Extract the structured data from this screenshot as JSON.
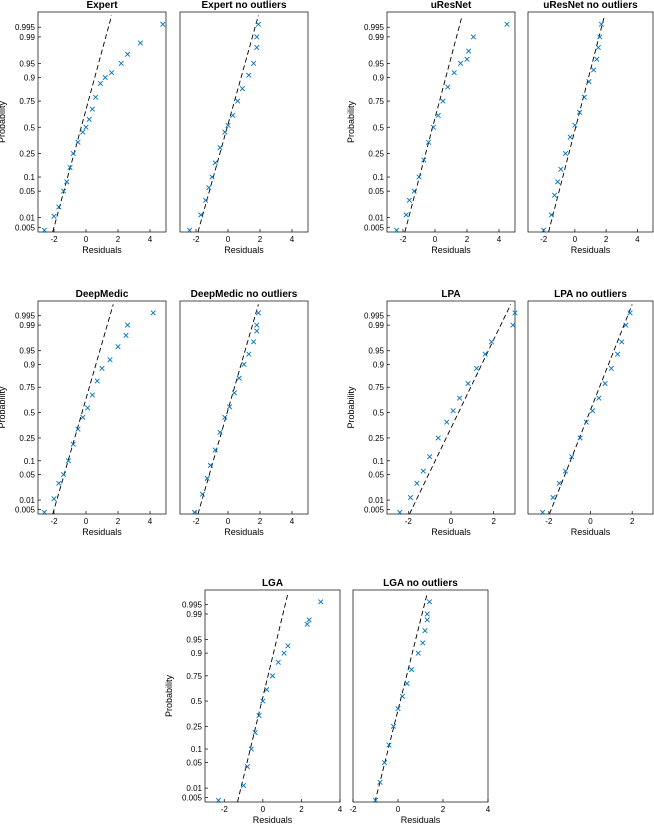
{
  "colors": {
    "marker": "#0072BD",
    "reference_line": "#000000",
    "axes": "#000000"
  },
  "chart_data": [
    {
      "type": "scatter",
      "subtype": "normal-probability-plot",
      "title": "Expert",
      "xlabel": "Residuals",
      "ylabel": "Probability",
      "xlim": [
        -3,
        5
      ],
      "xticks": [
        -2,
        0,
        2,
        4
      ],
      "yticks": [
        "0.005",
        "0.01",
        "0.05",
        "0.1",
        "0.25",
        "0.5",
        "0.75",
        "0.9",
        "0.95",
        "0.99",
        "0.995"
      ],
      "points": [
        [
          -2.6,
          0.004
        ],
        [
          -2.0,
          0.011
        ],
        [
          -1.7,
          0.02
        ],
        [
          -1.4,
          0.05
        ],
        [
          -1.2,
          0.08
        ],
        [
          -1.0,
          0.15
        ],
        [
          -0.8,
          0.25
        ],
        [
          -0.5,
          0.35
        ],
        [
          -0.2,
          0.45
        ],
        [
          0.0,
          0.5
        ],
        [
          0.2,
          0.58
        ],
        [
          0.4,
          0.68
        ],
        [
          0.6,
          0.78
        ],
        [
          0.9,
          0.87
        ],
        [
          1.2,
          0.9
        ],
        [
          1.6,
          0.92
        ],
        [
          2.2,
          0.95
        ],
        [
          2.6,
          0.97
        ],
        [
          3.4,
          0.985
        ],
        [
          4.8,
          0.996
        ]
      ],
      "reference_line": [
        [
          -2.2,
          0.002
        ],
        [
          1.6,
          0.998
        ]
      ]
    },
    {
      "type": "scatter",
      "subtype": "normal-probability-plot",
      "title": "Expert no outliers",
      "xlabel": "Residuals",
      "ylabel": "",
      "xlim": [
        -3,
        5
      ],
      "xticks": [
        -2,
        0,
        2,
        4
      ],
      "yticks": [],
      "points": [
        [
          -2.4,
          0.004
        ],
        [
          -1.7,
          0.012
        ],
        [
          -1.4,
          0.03
        ],
        [
          -1.2,
          0.06
        ],
        [
          -1.0,
          0.1
        ],
        [
          -0.8,
          0.18
        ],
        [
          -0.5,
          0.3
        ],
        [
          -0.2,
          0.45
        ],
        [
          0.0,
          0.52
        ],
        [
          0.3,
          0.62
        ],
        [
          0.6,
          0.75
        ],
        [
          0.9,
          0.84
        ],
        [
          1.3,
          0.91
        ],
        [
          1.6,
          0.95
        ],
        [
          1.8,
          0.98
        ],
        [
          1.8,
          0.99
        ],
        [
          1.9,
          0.996
        ]
      ],
      "reference_line": [
        [
          -2.0,
          0.002
        ],
        [
          1.9,
          0.998
        ]
      ]
    },
    {
      "type": "scatter",
      "subtype": "normal-probability-plot",
      "title": "uResNet",
      "xlabel": "Residuals",
      "ylabel": "Probability",
      "xlim": [
        -3,
        5
      ],
      "xticks": [
        -2,
        0,
        2,
        4
      ],
      "yticks": [
        "0.005",
        "0.01",
        "0.05",
        "0.1",
        "0.25",
        "0.5",
        "0.75",
        "0.9",
        "0.95",
        "0.99",
        "0.995"
      ],
      "points": [
        [
          -2.4,
          0.004
        ],
        [
          -1.8,
          0.012
        ],
        [
          -1.6,
          0.03
        ],
        [
          -1.3,
          0.05
        ],
        [
          -1.0,
          0.1
        ],
        [
          -0.7,
          0.2
        ],
        [
          -0.4,
          0.35
        ],
        [
          -0.1,
          0.5
        ],
        [
          0.2,
          0.62
        ],
        [
          0.5,
          0.75
        ],
        [
          0.8,
          0.85
        ],
        [
          1.2,
          0.92
        ],
        [
          1.6,
          0.95
        ],
        [
          2.0,
          0.96
        ],
        [
          2.1,
          0.975
        ],
        [
          2.4,
          0.99
        ],
        [
          4.5,
          0.996
        ]
      ],
      "reference_line": [
        [
          -2.0,
          0.002
        ],
        [
          1.7,
          0.998
        ]
      ]
    },
    {
      "type": "scatter",
      "subtype": "normal-probability-plot",
      "title": "uResNet no outliers",
      "xlabel": "Residuals",
      "ylabel": "",
      "xlim": [
        -3,
        5
      ],
      "xticks": [
        -2,
        0,
        2,
        4
      ],
      "yticks": [],
      "points": [
        [
          -2.0,
          0.004
        ],
        [
          -1.5,
          0.012
        ],
        [
          -1.3,
          0.04
        ],
        [
          -1.1,
          0.08
        ],
        [
          -0.9,
          0.14
        ],
        [
          -0.6,
          0.25
        ],
        [
          -0.3,
          0.4
        ],
        [
          0.0,
          0.52
        ],
        [
          0.3,
          0.65
        ],
        [
          0.6,
          0.78
        ],
        [
          0.9,
          0.88
        ],
        [
          1.2,
          0.93
        ],
        [
          1.4,
          0.96
        ],
        [
          1.5,
          0.98
        ],
        [
          1.6,
          0.99
        ],
        [
          1.7,
          0.996
        ]
      ],
      "reference_line": [
        [
          -1.8,
          0.002
        ],
        [
          1.9,
          0.998
        ]
      ]
    },
    {
      "type": "scatter",
      "subtype": "normal-probability-plot",
      "title": "DeepMedic",
      "xlabel": "Residuals",
      "ylabel": "Probability",
      "xlim": [
        -3,
        5
      ],
      "xticks": [
        -2,
        0,
        2,
        4
      ],
      "yticks": [
        "0.005",
        "0.01",
        "0.05",
        "0.1",
        "0.25",
        "0.5",
        "0.75",
        "0.9",
        "0.95",
        "0.99",
        "0.995"
      ],
      "points": [
        [
          -2.6,
          0.004
        ],
        [
          -2.0,
          0.011
        ],
        [
          -1.7,
          0.03
        ],
        [
          -1.4,
          0.05
        ],
        [
          -1.1,
          0.1
        ],
        [
          -0.8,
          0.2
        ],
        [
          -0.5,
          0.33
        ],
        [
          -0.2,
          0.45
        ],
        [
          0.1,
          0.55
        ],
        [
          0.4,
          0.68
        ],
        [
          0.7,
          0.8
        ],
        [
          1.0,
          0.88
        ],
        [
          1.5,
          0.92
        ],
        [
          2.0,
          0.96
        ],
        [
          2.5,
          0.98
        ],
        [
          2.6,
          0.99
        ],
        [
          4.2,
          0.996
        ]
      ],
      "reference_line": [
        [
          -2.2,
          0.002
        ],
        [
          1.7,
          0.998
        ]
      ]
    },
    {
      "type": "scatter",
      "subtype": "normal-probability-plot",
      "title": "DeepMedic no outliers",
      "xlabel": "Residuals",
      "ylabel": "",
      "xlim": [
        -3,
        5
      ],
      "xticks": [
        -2,
        0,
        2,
        4
      ],
      "yticks": [],
      "points": [
        [
          -2.1,
          0.004
        ],
        [
          -1.6,
          0.015
        ],
        [
          -1.3,
          0.04
        ],
        [
          -1.1,
          0.08
        ],
        [
          -0.8,
          0.16
        ],
        [
          -0.5,
          0.3
        ],
        [
          -0.2,
          0.45
        ],
        [
          0.1,
          0.56
        ],
        [
          0.4,
          0.7
        ],
        [
          0.7,
          0.82
        ],
        [
          1.0,
          0.9
        ],
        [
          1.3,
          0.94
        ],
        [
          1.6,
          0.97
        ],
        [
          1.8,
          0.985
        ],
        [
          1.8,
          0.99
        ],
        [
          1.9,
          0.996
        ]
      ],
      "reference_line": [
        [
          -2.0,
          0.002
        ],
        [
          1.9,
          0.998
        ]
      ]
    },
    {
      "type": "scatter",
      "subtype": "normal-probability-plot",
      "title": "LPA",
      "xlabel": "Residuals",
      "ylabel": "Probability",
      "xlim": [
        -3,
        3
      ],
      "xticks": [
        -2,
        0,
        2
      ],
      "yticks": [
        "0.005",
        "0.01",
        "0.05",
        "0.1",
        "0.25",
        "0.5",
        "0.75",
        "0.9",
        "0.95",
        "0.99",
        "0.995"
      ],
      "points": [
        [
          -2.4,
          0.004
        ],
        [
          -1.9,
          0.012
        ],
        [
          -1.6,
          0.03
        ],
        [
          -1.3,
          0.06
        ],
        [
          -1.0,
          0.12
        ],
        [
          -0.6,
          0.25
        ],
        [
          -0.2,
          0.4
        ],
        [
          0.1,
          0.52
        ],
        [
          0.4,
          0.65
        ],
        [
          0.8,
          0.78
        ],
        [
          1.2,
          0.88
        ],
        [
          1.6,
          0.94
        ],
        [
          1.9,
          0.97
        ],
        [
          2.9,
          0.99
        ],
        [
          3.0,
          0.996
        ]
      ],
      "reference_line": [
        [
          -2.1,
          0.002
        ],
        [
          2.8,
          0.998
        ]
      ]
    },
    {
      "type": "scatter",
      "subtype": "normal-probability-plot",
      "title": "LPA no outliers",
      "xlabel": "Residuals",
      "ylabel": "",
      "xlim": [
        -3,
        3
      ],
      "xticks": [
        -2,
        0,
        2
      ],
      "yticks": [],
      "points": [
        [
          -2.3,
          0.004
        ],
        [
          -1.8,
          0.012
        ],
        [
          -1.5,
          0.03
        ],
        [
          -1.2,
          0.06
        ],
        [
          -0.9,
          0.12
        ],
        [
          -0.5,
          0.25
        ],
        [
          -0.2,
          0.4
        ],
        [
          0.1,
          0.52
        ],
        [
          0.4,
          0.65
        ],
        [
          0.7,
          0.78
        ],
        [
          1.0,
          0.88
        ],
        [
          1.3,
          0.94
        ],
        [
          1.5,
          0.97
        ],
        [
          1.7,
          0.99
        ],
        [
          1.9,
          0.996
        ]
      ],
      "reference_line": [
        [
          -2.1,
          0.002
        ],
        [
          2.0,
          0.998
        ]
      ]
    },
    {
      "type": "scatter",
      "subtype": "normal-probability-plot",
      "title": "LGA",
      "xlabel": "Residuals",
      "ylabel": "Probability",
      "xlim": [
        -3,
        4
      ],
      "xticks": [
        -2,
        0,
        2,
        4
      ],
      "yticks": [
        "0.005",
        "0.01",
        "0.05",
        "0.1",
        "0.25",
        "0.5",
        "0.75",
        "0.9",
        "0.95",
        "0.99",
        "0.995"
      ],
      "points": [
        [
          -2.3,
          0.004
        ],
        [
          -1.0,
          0.012
        ],
        [
          -0.8,
          0.04
        ],
        [
          -0.6,
          0.1
        ],
        [
          -0.4,
          0.2
        ],
        [
          -0.2,
          0.35
        ],
        [
          0.0,
          0.5
        ],
        [
          0.2,
          0.62
        ],
        [
          0.5,
          0.75
        ],
        [
          0.8,
          0.85
        ],
        [
          1.1,
          0.9
        ],
        [
          1.3,
          0.93
        ],
        [
          2.3,
          0.98
        ],
        [
          2.4,
          0.985
        ],
        [
          3.0,
          0.996
        ]
      ],
      "reference_line": [
        [
          -1.4,
          0.002
        ],
        [
          1.3,
          0.998
        ]
      ]
    },
    {
      "type": "scatter",
      "subtype": "normal-probability-plot",
      "title": "LGA no outliers",
      "xlabel": "Residuals",
      "ylabel": "",
      "xlim": [
        -2,
        4
      ],
      "xticks": [
        -2,
        0,
        2,
        4
      ],
      "yticks": [],
      "points": [
        [
          -1.0,
          0.004
        ],
        [
          -0.8,
          0.015
        ],
        [
          -0.6,
          0.05
        ],
        [
          -0.4,
          0.12
        ],
        [
          -0.2,
          0.25
        ],
        [
          0.0,
          0.42
        ],
        [
          0.2,
          0.55
        ],
        [
          0.4,
          0.68
        ],
        [
          0.6,
          0.8
        ],
        [
          0.9,
          0.9
        ],
        [
          1.1,
          0.94
        ],
        [
          1.2,
          0.97
        ],
        [
          1.3,
          0.985
        ],
        [
          1.3,
          0.99
        ],
        [
          1.4,
          0.996
        ]
      ],
      "reference_line": [
        [
          -1.1,
          0.002
        ],
        [
          1.3,
          0.998
        ]
      ]
    }
  ]
}
